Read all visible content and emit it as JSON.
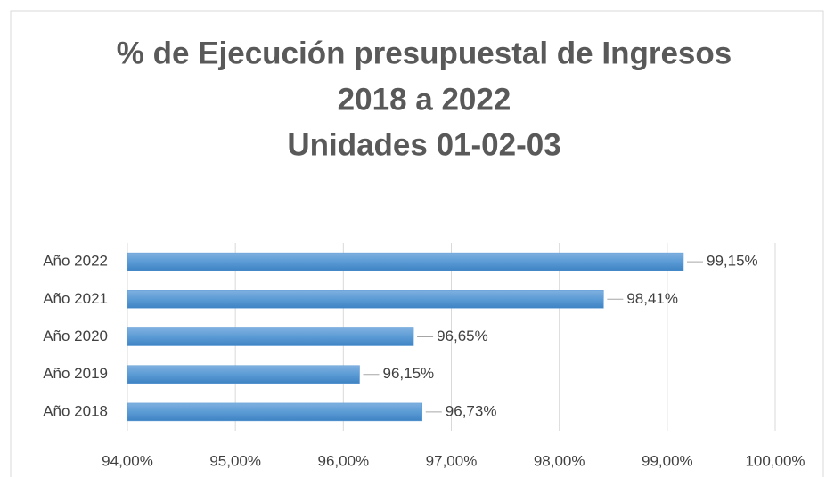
{
  "chart_data": {
    "type": "barh",
    "title": [
      "% de Ejecución presupuestal de Ingresos",
      "2018 a 2022",
      "Unidades 01-02-03"
    ],
    "categories": [
      "Año 2022",
      "Año 2021",
      "Año 2020",
      "Año 2019",
      "Año 2018"
    ],
    "values": [
      99.15,
      98.41,
      96.65,
      96.15,
      96.73
    ],
    "value_labels": [
      "99,15%",
      "98,41%",
      "96,65%",
      "96,15%",
      "96,73%"
    ],
    "color": "#5b9bd5",
    "xlim": [
      94,
      100
    ],
    "xticks": [
      {
        "value": 94,
        "label": "94,00%"
      },
      {
        "value": 95,
        "label": "95,00%"
      },
      {
        "value": 96,
        "label": "96,00%"
      },
      {
        "value": 97,
        "label": "97,00%"
      },
      {
        "value": 98,
        "label": "98,00%"
      },
      {
        "value": 99,
        "label": "99,00%"
      },
      {
        "value": 100,
        "label": "100,00%"
      }
    ],
    "grid": true
  }
}
